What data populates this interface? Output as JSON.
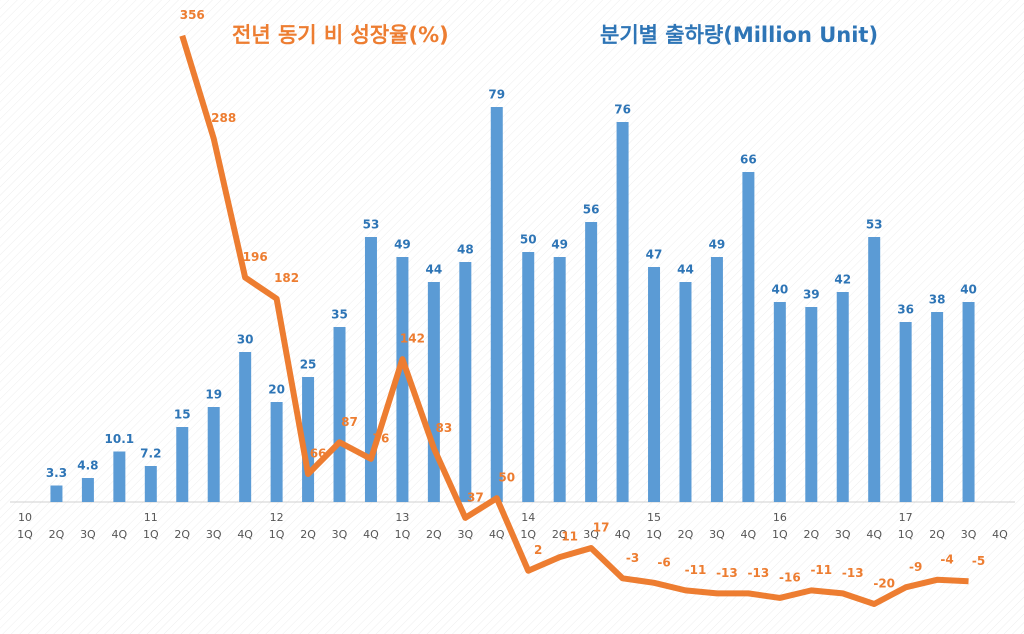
{
  "chart_data": {
    "type": "bar_line",
    "categories": [
      "1Q",
      "2Q",
      "3Q",
      "4Q",
      "1Q",
      "2Q",
      "3Q",
      "4Q",
      "1Q",
      "2Q",
      "3Q",
      "4Q",
      "1Q",
      "2Q",
      "3Q",
      "4Q",
      "1Q",
      "2Q",
      "3Q",
      "4Q",
      "1Q",
      "2Q",
      "3Q",
      "4Q",
      "1Q",
      "2Q",
      "3Q",
      "4Q",
      "1Q",
      "2Q",
      "3Q",
      "4Q"
    ],
    "year_labels": [
      "10",
      null,
      null,
      null,
      "11",
      null,
      null,
      null,
      "12",
      null,
      null,
      null,
      "13",
      null,
      null,
      null,
      "14",
      null,
      null,
      null,
      "15",
      null,
      null,
      null,
      "16",
      null,
      null,
      null,
      "17",
      null,
      null,
      null
    ],
    "series": [
      {
        "name": "분기별 출하량(Million Unit)",
        "type": "bar",
        "color": "#5b9bd5",
        "label_color": "#2e75b6",
        "values": [
          null,
          3.3,
          4.8,
          10.1,
          7.2,
          15,
          19,
          30,
          20,
          25,
          35,
          53,
          49,
          44,
          48,
          79,
          50,
          49,
          56,
          76,
          47,
          44,
          49,
          66,
          40,
          39,
          42,
          53,
          36,
          38,
          40,
          null
        ]
      },
      {
        "name": "전년 동기 비 성장율(%)",
        "type": "line",
        "axis": "y2",
        "color": "#ed7d31",
        "values": [
          null,
          null,
          null,
          null,
          null,
          356,
          288,
          196,
          182,
          66,
          87,
          76,
          142,
          83,
          37,
          50,
          2,
          11,
          17,
          -3,
          -6,
          -11,
          -13,
          -13,
          -16,
          -11,
          -13,
          -20,
          -9,
          -4,
          -5,
          null
        ]
      }
    ],
    "ylim": [
      -21,
      99
    ],
    "y2lim": [
      -22,
      375
    ]
  }
}
